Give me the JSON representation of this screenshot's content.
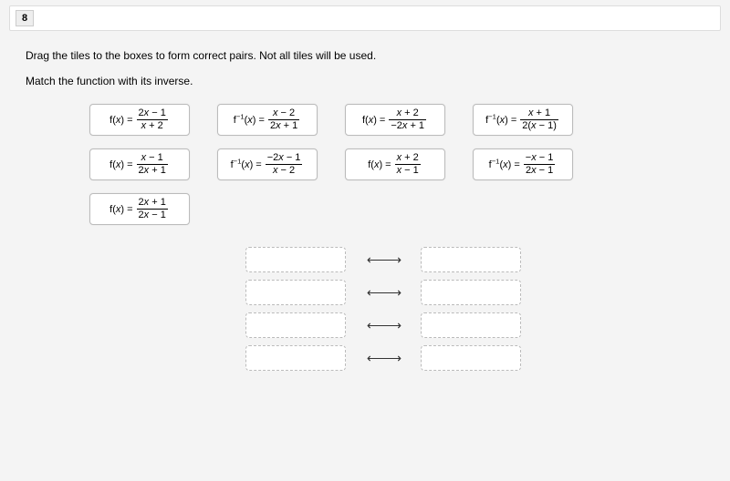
{
  "question_number": "8",
  "instruction1": "Drag the tiles to the boxes to form correct pairs. Not all tiles will be used.",
  "instruction2": "Match the function with its inverse.",
  "tiles": [
    [
      {
        "lhs": "f(x) =",
        "num": "2x − 1",
        "den": "x + 2"
      },
      {
        "lhs": "f⁻¹(x) =",
        "num": "x − 2",
        "den": "2x + 1"
      },
      {
        "lhs": "f(x) =",
        "num": "x + 2",
        "den": "−2x + 1"
      },
      {
        "lhs": "f⁻¹(x) =",
        "num": "x + 1",
        "den": "2(x − 1)"
      }
    ],
    [
      {
        "lhs": "f(x) =",
        "num": "x − 1",
        "den": "2x + 1"
      },
      {
        "lhs": "f⁻¹(x) =",
        "num": "−2x − 1",
        "den": "x − 2"
      },
      {
        "lhs": "f(x) =",
        "num": "x + 2",
        "den": "x − 1"
      },
      {
        "lhs": "f⁻¹(x) =",
        "num": "−x − 1",
        "den": "2x − 1"
      }
    ],
    [
      {
        "lhs": "f(x) =",
        "num": "2x + 1",
        "den": "2x − 1"
      }
    ]
  ],
  "pair_count": 4,
  "arrow_glyph": "⟵⟶",
  "colors": {
    "page_bg": "#f4f4f4",
    "tile_border": "#bbbbbb",
    "drop_border": "#bbbbbb"
  }
}
